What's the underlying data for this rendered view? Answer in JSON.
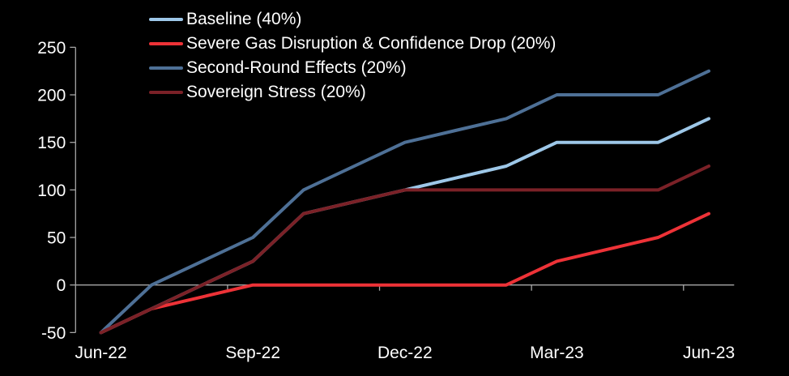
{
  "chart_data": {
    "type": "line",
    "title": "",
    "categories": [
      "Jun-22",
      "Jul-22",
      "Aug-22",
      "Sep-22",
      "Oct-22",
      "Nov-22",
      "Dec-22",
      "Jan-23",
      "Feb-23",
      "Mar-23",
      "Apr-23",
      "May-23",
      "Jun-23"
    ],
    "x_axis_labels": [
      "Jun-22",
      "Sep-22",
      "Dec-22",
      "Mar-23",
      "Jun-23"
    ],
    "labeled_category_indices": [
      0,
      3,
      6,
      9,
      12
    ],
    "series": [
      {
        "name": "Baseline (40%)",
        "color": "#9DC7E8",
        "values": [
          -50,
          -25,
          0,
          25,
          75,
          87.5,
          100,
          112.5,
          125,
          150,
          150,
          150,
          175
        ]
      },
      {
        "name": "Severe Gas Disruption & Confidence Drop (20%)",
        "color": "#ED3237",
        "values": [
          -50,
          -25,
          -12.5,
          0,
          0,
          0,
          0,
          0,
          0,
          25,
          37.5,
          50,
          75
        ]
      },
      {
        "name": "Second-Round Effects (20%)",
        "color": "#4E7096",
        "values": [
          -50,
          0,
          25,
          50,
          100,
          125,
          150,
          162.5,
          175,
          200,
          200,
          200,
          225
        ]
      },
      {
        "name": "Sovereign Stress (20%)",
        "color": "#7B2127",
        "values": [
          -50,
          -25,
          0,
          25,
          75,
          87.5,
          100,
          100,
          100,
          100,
          100,
          100,
          125
        ]
      }
    ],
    "y_ticks": [
      250,
      200,
      150,
      100,
      50,
      0,
      -50
    ],
    "ylim": [
      -50,
      250
    ],
    "xlabel": "",
    "ylabel": "",
    "legend_position": "top-left-inside",
    "grid": "zero-line-only",
    "background_color": "#000000",
    "text_color": "#FFFFFF",
    "axis_color": "#A6A6A6"
  }
}
